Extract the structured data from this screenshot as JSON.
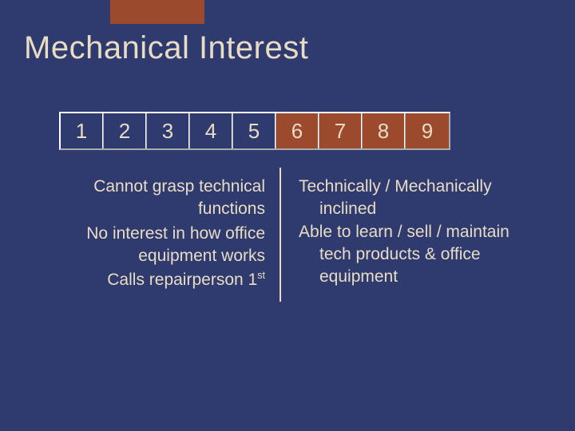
{
  "accent_color": "#9b4a2e",
  "background_color": "#2f3a6f",
  "text_color": "#e8dcc5",
  "title": "Mechanical Interest",
  "scale": {
    "cells": [
      "1",
      "2",
      "3",
      "4",
      "5",
      "6",
      "7",
      "8",
      "9"
    ],
    "highlighted": [
      5,
      6,
      7,
      8
    ],
    "cell_bg": "#2f3a6f",
    "highlight_bg": "#9b4a2e",
    "border_color": "#ffffff"
  },
  "left": {
    "l1": "Cannot grasp technical functions",
    "l2": "No interest in how office equipment works",
    "l3a": "Calls repairperson 1",
    "l3b": "st"
  },
  "right": {
    "r1": "Technically / Mechanically inclined",
    "r2": "Able to learn / sell / maintain tech products & office equipment"
  }
}
